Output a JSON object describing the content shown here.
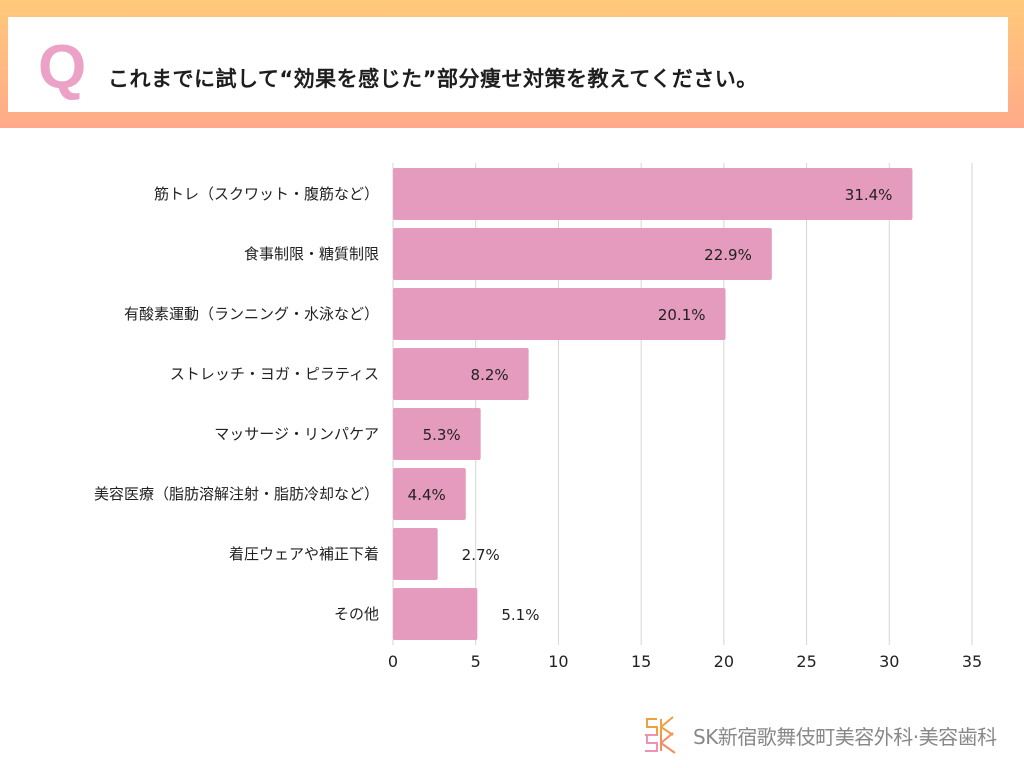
{
  "header": {
    "q_mark": "Q",
    "question": "これまでに試して“効果を感じた”部分痩せ対策を教えてください。"
  },
  "chart_data": {
    "type": "bar",
    "orientation": "horizontal",
    "categories": [
      "筋トレ（スクワット・腹筋など）",
      "食事制限・糖質制限",
      "有酸素運動（ランニング・水泳など）",
      "ストレッチ・ヨガ・ピラティス",
      "マッサージ・リンパケア",
      "美容医療（脂肪溶解注射・脂肪冷却など）",
      "着圧ウェアや補正下着",
      "その他"
    ],
    "values": [
      31.4,
      22.9,
      20.1,
      8.2,
      5.3,
      4.4,
      2.7,
      5.1
    ],
    "data_labels": [
      "31.4%",
      "22.9%",
      "20.1%",
      "8.2%",
      "5.3%",
      "4.4%",
      "2.7%",
      "5.1%"
    ],
    "xlim": [
      0,
      35
    ],
    "xticks": [
      "0",
      "5",
      "10",
      "15",
      "20",
      "25",
      "30",
      "35"
    ],
    "grid": "vertical",
    "bar_color": "#e59bbe",
    "title": "",
    "xlabel": "",
    "ylabel": ""
  },
  "footer": {
    "logo_mark": "SK",
    "logo_text": "SK新宿歌舞伎町美容外科·美容歯科"
  }
}
